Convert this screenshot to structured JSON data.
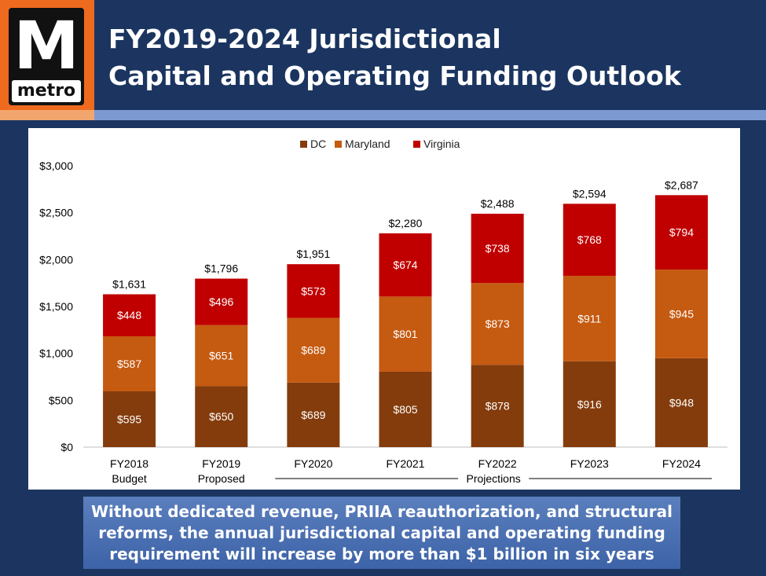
{
  "header": {
    "logo_text": "M",
    "logo_word": "metro",
    "title_line1": "FY2019-2024 Jurisdictional",
    "title_line2": "Capital and Operating Funding Outlook"
  },
  "colors": {
    "dc": "#843c0c",
    "maryland": "#c55a11",
    "virginia": "#c00000",
    "background": "#1b3560",
    "accent_orange": "#ee6a1e"
  },
  "chart_data": {
    "type": "bar",
    "stacked": true,
    "categories": [
      "FY2018\nBudget",
      "FY2019\nProposed",
      "FY2020",
      "FY2021",
      "FY2022",
      "FY2023",
      "FY2024"
    ],
    "series": [
      {
        "name": "DC",
        "values": [
          595,
          650,
          689,
          805,
          878,
          916,
          948
        ],
        "labels": [
          "$595",
          "$650",
          "$689",
          "$805",
          "$878",
          "$916",
          "$948"
        ]
      },
      {
        "name": "Maryland",
        "values": [
          587,
          651,
          689,
          801,
          873,
          911,
          945
        ],
        "labels": [
          "$587",
          "$651",
          "$689",
          "$801",
          "$873",
          "$911",
          "$945"
        ]
      },
      {
        "name": "Virginia",
        "values": [
          448,
          496,
          573,
          674,
          738,
          768,
          794
        ],
        "labels": [
          "$448",
          "$496",
          "$573",
          "$674",
          "$738",
          "$768",
          "$794"
        ]
      }
    ],
    "totals": [
      1631,
      1796,
      1951,
      2280,
      2488,
      2594,
      2687
    ],
    "total_labels": [
      "$1,631",
      "$1,796",
      "$1,951",
      "$2,280",
      "$2,488",
      "$2,594",
      "$2,687"
    ],
    "ylim": [
      0,
      3000
    ],
    "yticks": [
      0,
      500,
      1000,
      1500,
      2000,
      2500,
      3000
    ],
    "ytick_labels": [
      "$0",
      "$500",
      "$1,000",
      "$1,500",
      "$2,000",
      "$2,500",
      "$3,000"
    ],
    "legend_position": "top-center",
    "bracket_label": "Projections",
    "bracket_range": [
      "FY2020",
      "FY2024"
    ],
    "grid": false
  },
  "footer": {
    "message": "Without dedicated revenue, PRIIA reauthorization, and structural reforms, the annual jurisdictional capital and operating funding requirement will increase by more than $1 billion in six years"
  }
}
